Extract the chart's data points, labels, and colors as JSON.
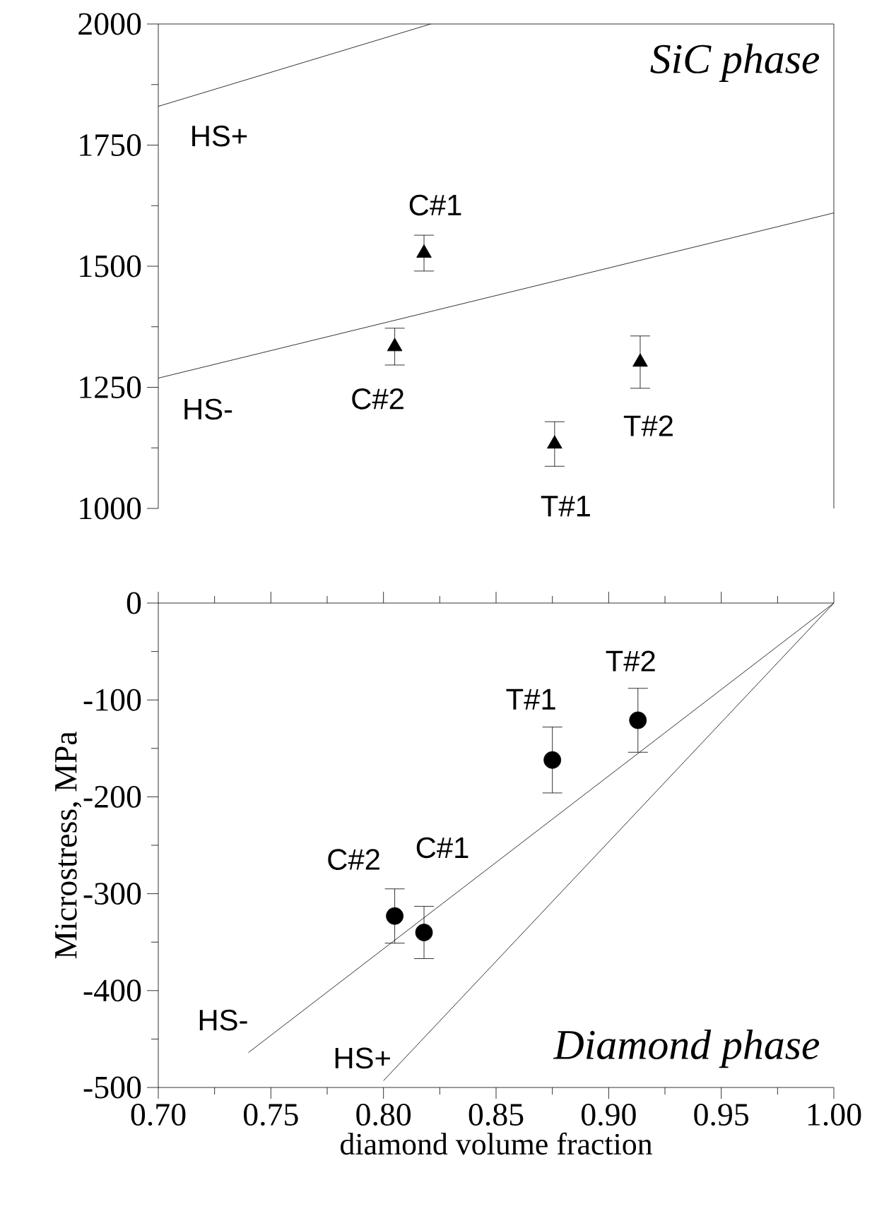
{
  "chart_data": [
    {
      "type": "scatter",
      "title": "SiC phase",
      "xlim": [
        0.7,
        1.0
      ],
      "ylim": [
        1000,
        2000
      ],
      "yticks": [
        1000,
        1250,
        1500,
        1750,
        2000
      ],
      "tick_labels": "y",
      "marker": "triangle",
      "series": [
        {
          "color": "#000000",
          "x": [
            0.818,
            0.805,
            0.876,
            0.914
          ],
          "values": [
            1527,
            1334,
            1133,
            1302
          ],
          "errors": [
            37,
            38,
            46,
            54
          ]
        },
        {
          "type": "line",
          "color": "#000000",
          "x": [
            0.7,
            0.821
          ],
          "values": [
            1830,
            2000
          ],
          "marker": "none"
        },
        {
          "type": "line",
          "color": "#000000",
          "x": [
            0.7,
            1.0
          ],
          "values": [
            1269,
            1610
          ],
          "marker": "none"
        }
      ],
      "annotations": [
        {
          "text": "C#1",
          "x": 0.818,
          "y": 1527
        },
        {
          "text": "C#2",
          "x": 0.805,
          "y": 1334
        },
        {
          "text": "T#1",
          "x": 0.876,
          "y": 1133
        },
        {
          "text": "T#2",
          "x": 0.914,
          "y": 1302
        },
        {
          "text": "HS+",
          "x": 0.7,
          "y": 1830
        },
        {
          "text": "HS-",
          "x": 0.7,
          "y": 1269
        }
      ]
    },
    {
      "type": "scatter",
      "title": "Diamond phase",
      "xlabel": "diamond volume fraction",
      "ylabel": "Microstress, MPa",
      "xlim": [
        0.7,
        1.0
      ],
      "ylim": [
        -500,
        0
      ],
      "xticks": [
        {
          "value": 0.7,
          "label": "0.70"
        },
        {
          "value": 0.75,
          "label": "0.75"
        },
        {
          "value": 0.8,
          "label": "0.80"
        },
        {
          "value": 0.85,
          "label": "0.85"
        },
        {
          "value": 0.9,
          "label": "0.90"
        },
        {
          "value": 0.95,
          "label": "0.95"
        },
        {
          "value": 1.0,
          "label": "1.00"
        }
      ],
      "yticks": [
        -500,
        -400,
        -300,
        -200,
        -100,
        0
      ],
      "marker": "circle",
      "series": [
        {
          "color": "#000000",
          "x": [
            0.805,
            0.818,
            0.875,
            0.913
          ],
          "values": [
            -323,
            -340,
            -162,
            -121
          ],
          "errors": [
            28,
            27,
            34,
            33
          ]
        },
        {
          "type": "line",
          "color": "#000000",
          "x": [
            0.74,
            1.0
          ],
          "values": [
            -464,
            0
          ],
          "marker": "none"
        },
        {
          "type": "line",
          "color": "#000000",
          "x": [
            0.8,
            1.0
          ],
          "values": [
            -493,
            0
          ],
          "marker": "none"
        }
      ],
      "annotations": [
        {
          "text": "T#2",
          "x": 0.913,
          "y": -121
        },
        {
          "text": "T#1",
          "x": 0.875,
          "y": -162
        },
        {
          "text": "C#1",
          "x": 0.818,
          "y": -340
        },
        {
          "text": "C#2",
          "x": 0.805,
          "y": -323
        },
        {
          "text": "HS-",
          "x": 0.74,
          "y": -464
        },
        {
          "text": "HS+",
          "x": 0.8,
          "y": -493
        }
      ]
    }
  ]
}
